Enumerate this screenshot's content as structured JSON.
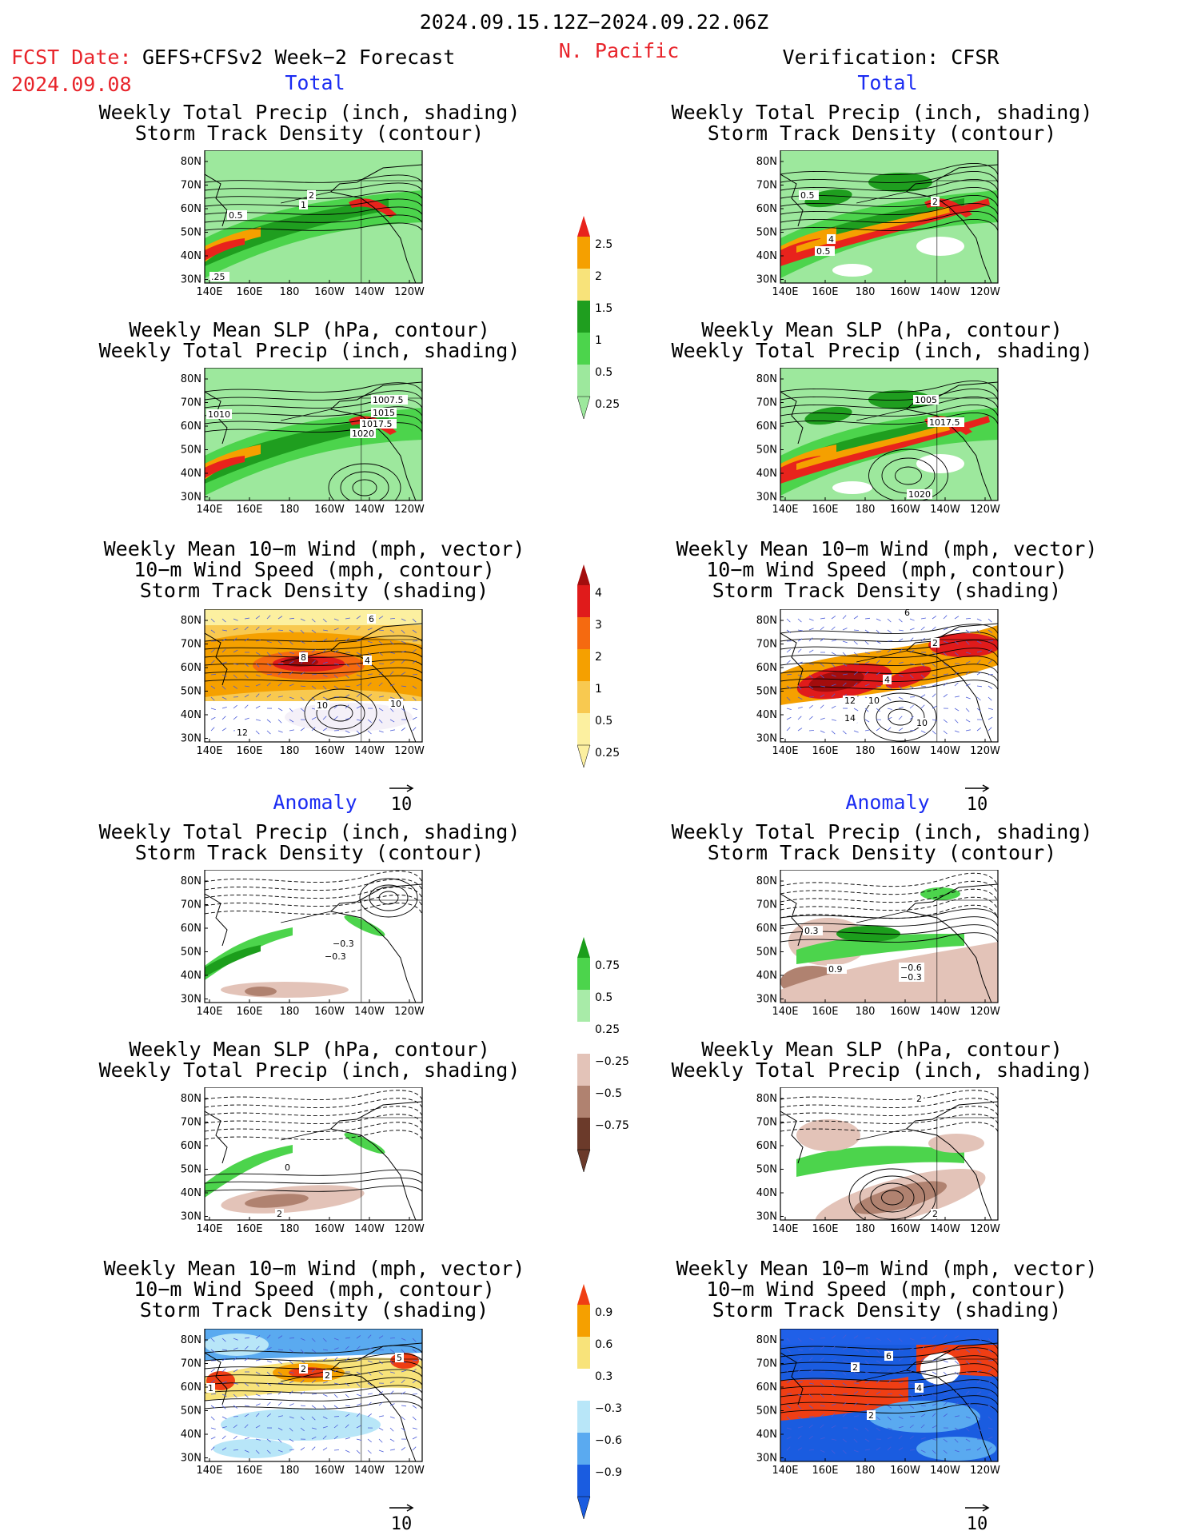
{
  "header": {
    "date_range": "2024.09.15.12Z−2024.09.22.06Z",
    "fcst_label": "FCST Date:",
    "fcst_model": "GEFS+CFSv2 Week−2 Forecast",
    "fcst_date": "2024.09.08",
    "region": "N. Pacific",
    "verification": "Verification: CFSR"
  },
  "sections": {
    "total": "Total",
    "anomaly": "Anomaly"
  },
  "panel_titles": {
    "precip_storm": [
      "Weekly Total Precip (inch, shading)",
      "Storm Track Density (contour)"
    ],
    "slp_precip": [
      "Weekly Mean SLP (hPa, contour)",
      "Weekly Total Precip (inch, shading)"
    ],
    "wind_storm": [
      "Weekly Mean 10−m Wind (mph, vector)",
      "10−m Wind Speed (mph, contour)",
      "Storm Track Density (shading)"
    ]
  },
  "axes": {
    "lat_ticks": [
      "80N",
      "70N",
      "60N",
      "50N",
      "40N",
      "30N"
    ],
    "lon_ticks": [
      "140E",
      "160E",
      "180",
      "160W",
      "140W",
      "120W"
    ]
  },
  "colorbars": {
    "precip_total": {
      "labels": [
        "2.5",
        "2",
        "1.5",
        "1",
        "0.5",
        "0.25"
      ],
      "colors": [
        "#e8231c",
        "#f5a000",
        "#f8e37a",
        "#1f9e1f",
        "#4cd44c",
        "#9de89d"
      ]
    },
    "storm_total": {
      "labels": [
        "4",
        "3",
        "2",
        "1",
        "0.5",
        "0.25"
      ],
      "colors": [
        "#a30d0d",
        "#e01b1b",
        "#f56a10",
        "#f5a000",
        "#f8c950",
        "#fcf0a0"
      ]
    },
    "precip_anom": {
      "labels": [
        "0.75",
        "0.5",
        "0.25",
        "−0.25",
        "−0.5",
        "−0.75"
      ],
      "colors": [
        "#1c9e1c",
        "#4cd44c",
        "#a8eba8",
        "#ffffff",
        "#e3c3b8",
        "#b08270",
        "#6b3a2a"
      ]
    },
    "storm_anom": {
      "labels": [
        "0.9",
        "0.6",
        "0.3",
        "−0.3",
        "−0.6",
        "−0.9"
      ],
      "colors": [
        "#ef3e14",
        "#f5a000",
        "#f8e37a",
        "#ffffff",
        "#b8e6f8",
        "#5aaaf0",
        "#1a5ce0"
      ]
    }
  },
  "contour_labels": {
    "fcst_total_precip": [
      "0.5",
      "2",
      "1",
      ".25"
    ],
    "cfsr_total_precip": [
      "0.5",
      "2",
      "4",
      "0.5"
    ],
    "fcst_total_slp": [
      "1007.5",
      "1015",
      "1017.5",
      "1020",
      "1010"
    ],
    "cfsr_total_slp": [
      "1005",
      "1017.5",
      "1020"
    ],
    "fcst_total_wind": [
      "6",
      "8",
      "4",
      "10",
      "12",
      "10"
    ],
    "cfsr_total_wind": [
      "6",
      "2",
      "4",
      "12",
      "10",
      "14",
      "10"
    ],
    "fcst_anom_precip": [
      "−0.3",
      "−0.3"
    ],
    "cfsr_anom_precip": [
      "0.3",
      "0.9",
      "−0.6",
      "−0.3"
    ],
    "fcst_anom_slp": [
      "0",
      "2"
    ],
    "cfsr_anom_slp": [
      "2",
      "2"
    ],
    "fcst_anom_wind": [
      "1",
      "2",
      "2",
      "5"
    ],
    "cfsr_anom_wind": [
      "2",
      "6",
      "4",
      "2"
    ]
  },
  "vector_ref": "10"
}
